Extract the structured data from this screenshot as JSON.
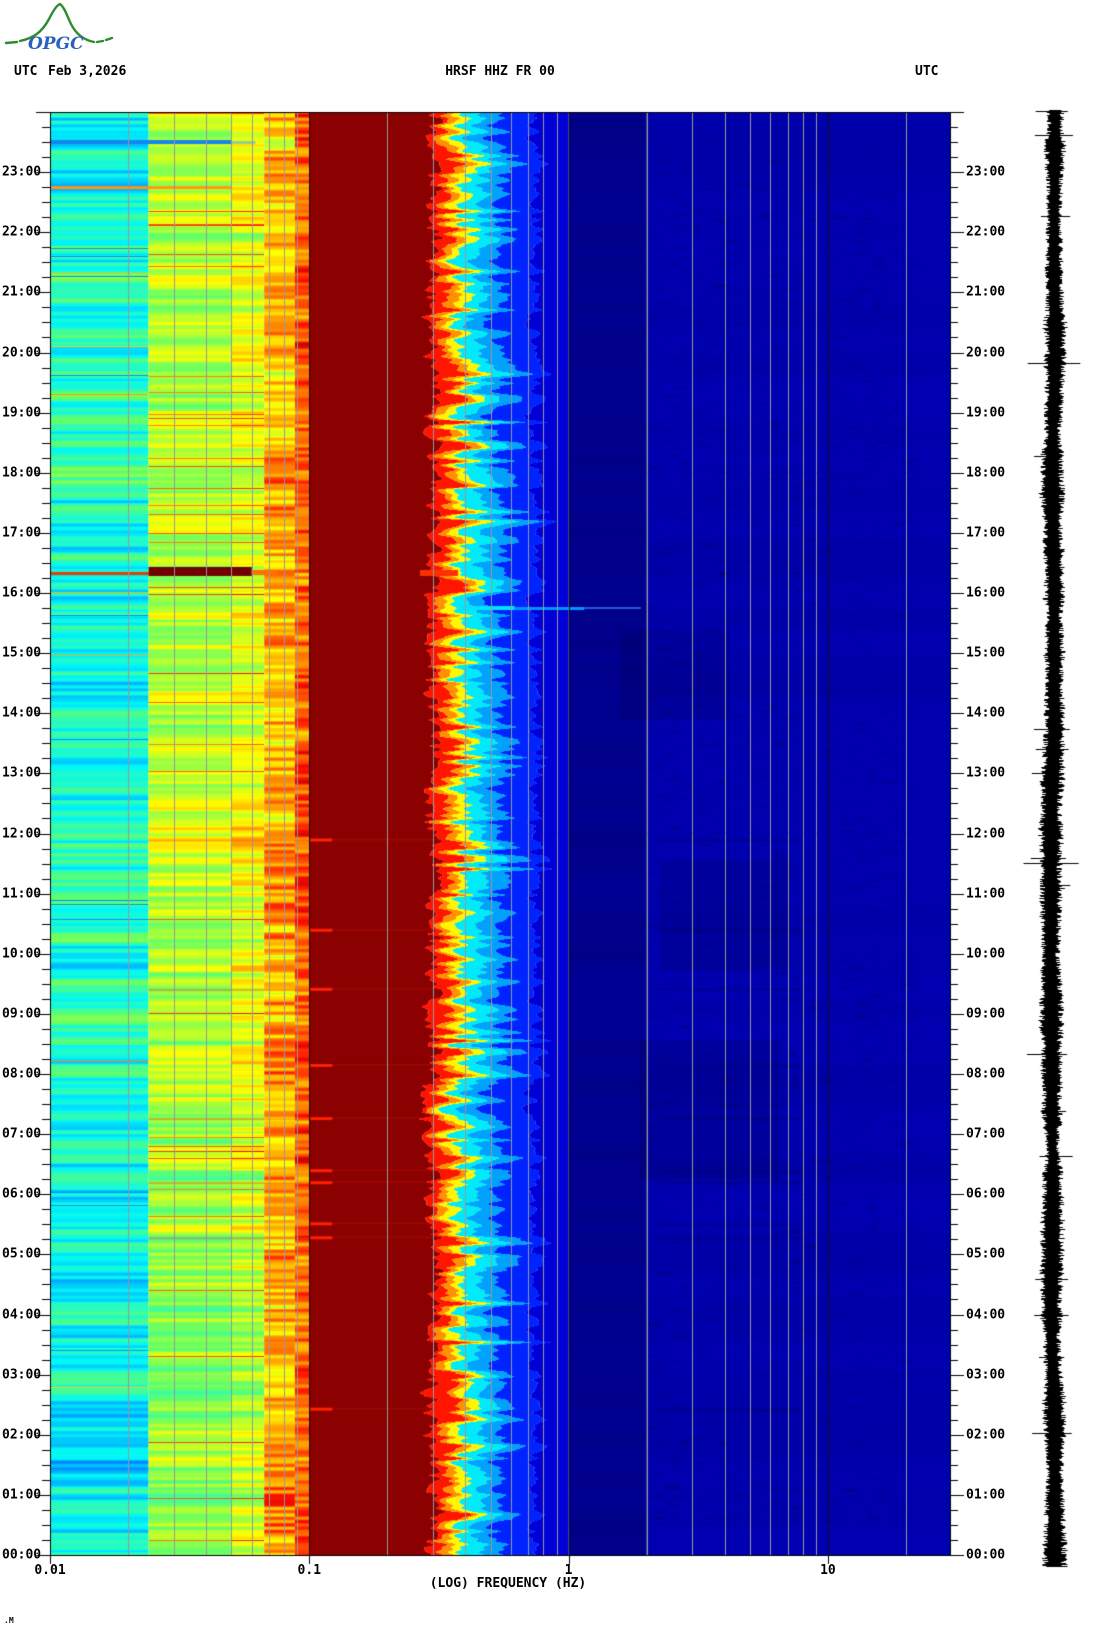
{
  "header": {
    "utc_left": "UTC",
    "date": "Feb 3,2026",
    "title": "HRSF HHZ FR 00",
    "utc_right": "UTC"
  },
  "logo": {
    "text": "OPGC",
    "text_color": "#2b5fc4",
    "curve_color": "#2e8b2e"
  },
  "footer_mark": ".M",
  "chart_data": {
    "type": "heatmap",
    "subtype": "24h seismic spectrogram (log-frequency vs UTC time) with amplitude trace at right",
    "station": "HRSF HHZ FR 00",
    "date_utc": "Feb 3,2026",
    "xlabel": "(LOG) FREQUENCY (HZ)",
    "x_scale": "log10",
    "x_range_hz": [
      0.01,
      30
    ],
    "x_ticks": [
      {
        "hz": 0.01,
        "label": "0.01"
      },
      {
        "hz": 0.1,
        "label": "0.1"
      },
      {
        "hz": 1,
        "label": "1"
      },
      {
        "hz": 10,
        "label": "10"
      }
    ],
    "x_gridlines": {
      "gray_subdecades": [
        2,
        3,
        4,
        5,
        6,
        7,
        8,
        9
      ],
      "black_hz": [
        0.1,
        1,
        10
      ]
    },
    "y_axis": {
      "unit": "UTC",
      "bottom": "00:00",
      "top": "24:00",
      "minor_tick_minutes": 15,
      "hour_labels": [
        "00:00",
        "01:00",
        "02:00",
        "03:00",
        "04:00",
        "05:00",
        "06:00",
        "07:00",
        "08:00",
        "09:00",
        "10:00",
        "11:00",
        "12:00",
        "13:00",
        "14:00",
        "15:00",
        "16:00",
        "17:00",
        "18:00",
        "19:00",
        "20:00",
        "21:00",
        "22:00",
        "23:00"
      ]
    },
    "colormap_stops": [
      [
        0.0,
        "#000083"
      ],
      [
        0.125,
        "#0000ff"
      ],
      [
        0.25,
        "#0080ff"
      ],
      [
        0.375,
        "#00f8f8"
      ],
      [
        0.5,
        "#66ff66"
      ],
      [
        0.625,
        "#ffff00"
      ],
      [
        0.75,
        "#ff8c00"
      ],
      [
        0.875,
        "#ff1000"
      ],
      [
        1.0,
        "#800000"
      ]
    ],
    "colors": {
      "maroon": "#8b0000",
      "blue_zone": "#0000a9",
      "navy_band": "#000088",
      "grid_gray": "#989898",
      "grid_black": "#111111",
      "trace": "#000000",
      "background": "#ffffff"
    },
    "bands": [
      {
        "hz": [
          0.01,
          0.024
        ],
        "appearance": "turquoise/cyan with fine horizontal striping",
        "level": 0.4
      },
      {
        "hz": [
          0.024,
          0.05
        ],
        "appearance": "green-yellow striping, occasional orange/red rows",
        "level": 0.57
      },
      {
        "hz": [
          0.05,
          0.067
        ],
        "appearance": "yellow striping",
        "level": 0.61
      },
      {
        "hz": [
          0.067,
          0.088
        ],
        "appearance": "dense yellow-orange-red stripes",
        "level": 0.71
      },
      {
        "hz": [
          0.088,
          0.1
        ],
        "appearance": "very dense red / dark-red stripes",
        "level": 0.8
      },
      {
        "hz": [
          0.1,
          0.29
        ],
        "appearance": "saturated dark red (maximum power, microseism band)",
        "level": 1.0
      },
      {
        "hz": [
          0.29,
          0.5
        ],
        "appearance": "ragged red-orange-yellow-cyan transition edge",
        "level": 0.85
      },
      {
        "hz": [
          0.5,
          1
        ],
        "appearance": "cyan fading through blue",
        "level": 0.25
      },
      {
        "hz": [
          1,
          2
        ],
        "appearance": "darkest navy blue column",
        "level": 0.02
      },
      {
        "hz": [
          2,
          30
        ],
        "appearance": "uniform dark blue with faint dark speckle",
        "level": 0.05
      }
    ],
    "events": [
      {
        "time_utc": "23:30",
        "desc": "blue (low power) line below 0.05 Hz"
      },
      {
        "time_utc": "22:45",
        "desc": "orange line below 0.05 Hz"
      },
      {
        "time_utc": "16:20",
        "desc": "dark-red high-power bar 0.024-0.075 Hz"
      },
      {
        "time_utc": "15:45",
        "desc": "cyan streak extending 0.4-2 Hz"
      }
    ],
    "red_dash_times_utc": [
      "11:54",
      "10:24",
      "09:25",
      "08:09",
      "07:16",
      "06:24",
      "06:12",
      "05:31",
      "05:17",
      "02:26"
    ],
    "side_trace": {
      "kind": "helicorder-style amplitude trace, same time axis",
      "color": "#000000"
    }
  }
}
